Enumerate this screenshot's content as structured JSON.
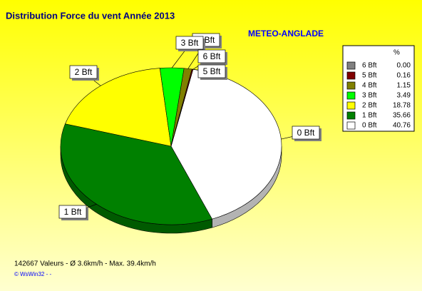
{
  "chart_data": {
    "type": "pie",
    "title": "Distribution Force du vent  Année 2013",
    "subtitle": "METEO-ANGLADE",
    "legend_header": "%",
    "categories": [
      "6 Bft",
      "5 Bft",
      "4 Bft",
      "3 Bft",
      "2 Bft",
      "1 Bft",
      "0 Bft"
    ],
    "values": [
      0,
      0.16,
      1.15,
      3.49,
      18.78,
      35.66,
      40.76
    ],
    "value_labels": [
      "0.00",
      "0.16",
      "1.15",
      "3.49",
      "18.78",
      "35.66",
      "40.76"
    ],
    "colors": [
      "#808080",
      "#800000",
      "#808000",
      "#00ff00",
      "#ffff00",
      "#008000",
      "#ffffff"
    ],
    "legend": "right",
    "footer": "142667 Valeurs   -   Ø 3.6km/h  -  Max. 39.4km/h",
    "credit": "© WsWin32  -    -"
  }
}
